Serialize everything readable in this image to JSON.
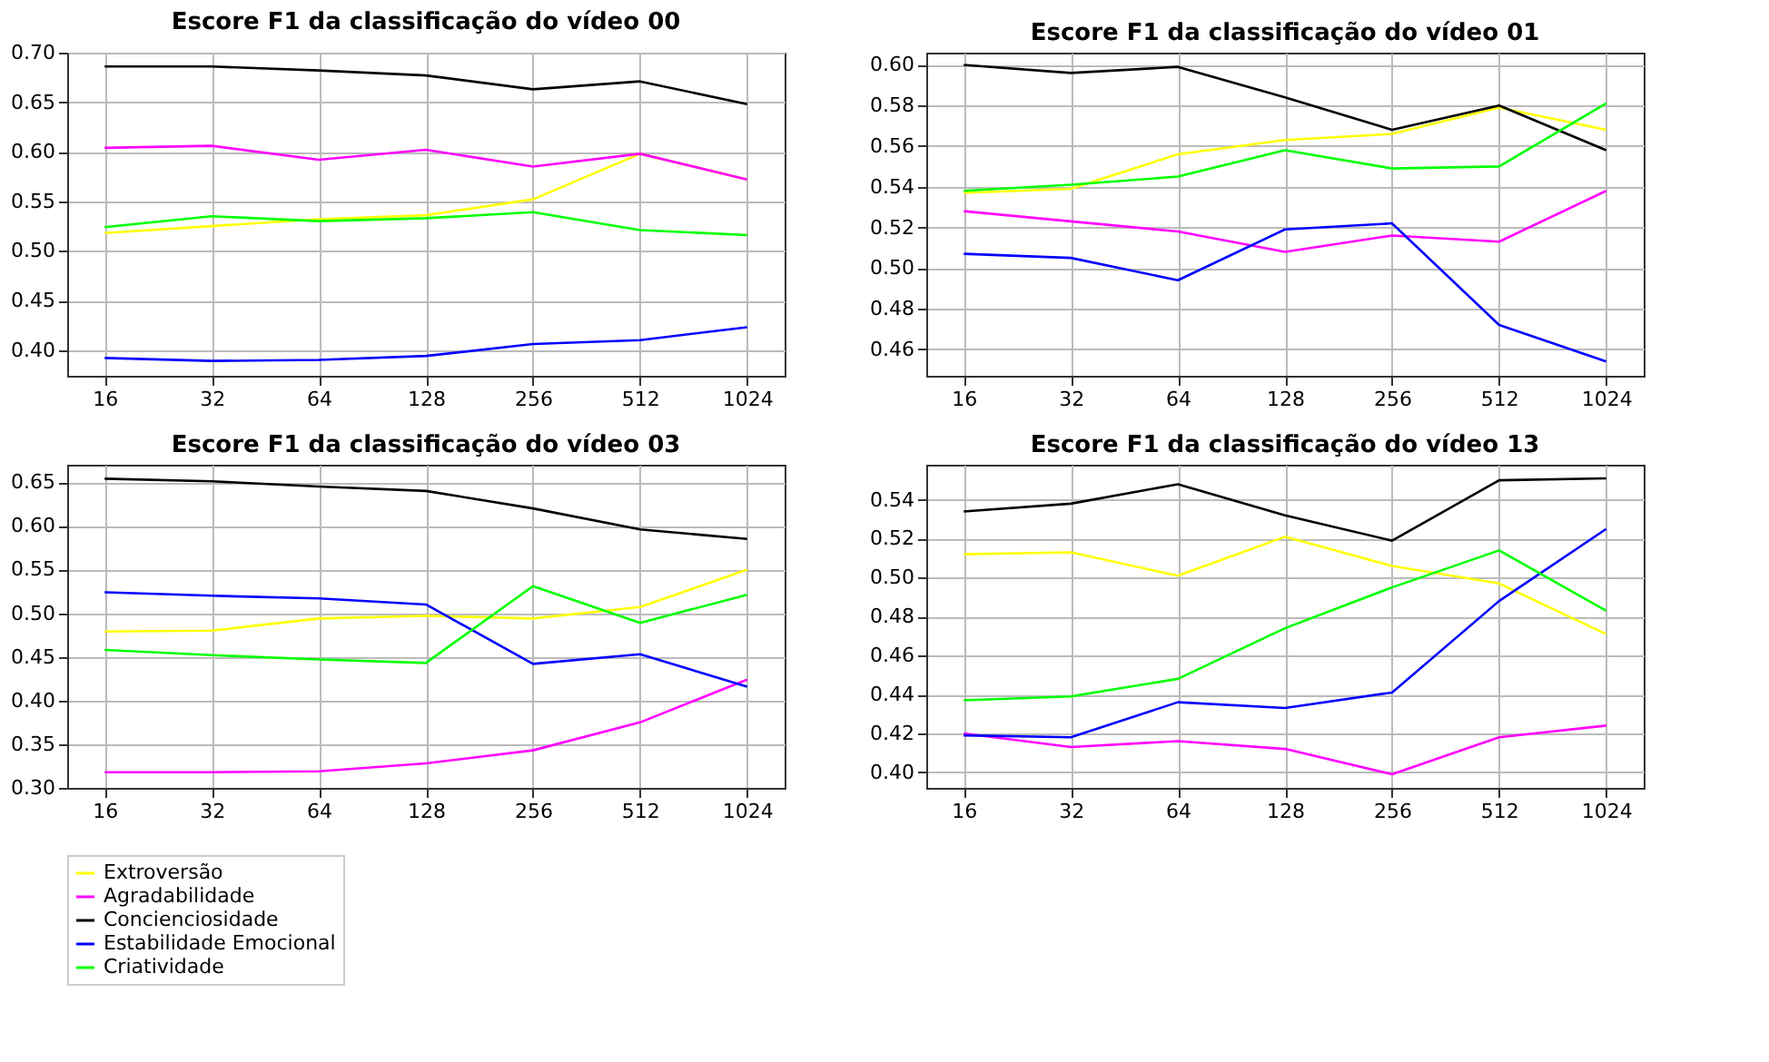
{
  "chart_data": [
    {
      "type": "line",
      "title": "Escore F1 da classificação do vídeo 00",
      "categories": [
        "16",
        "32",
        "64",
        "128",
        "256",
        "512",
        "1024"
      ],
      "ylim": [
        0.374,
        0.7
      ],
      "yticks": [
        {
          "value": 0.4,
          "label": "0.40"
        },
        {
          "value": 0.45,
          "label": "0.45"
        },
        {
          "value": 0.5,
          "label": "0.50"
        },
        {
          "value": 0.55,
          "label": "0.55"
        },
        {
          "value": 0.6,
          "label": "0.60"
        },
        {
          "value": 0.65,
          "label": "0.65"
        },
        {
          "value": 0.7,
          "label": "0.70"
        }
      ],
      "grid": true,
      "legend": "bottom",
      "series": [
        {
          "name": "Extroversão",
          "color": "#ffff00",
          "values": [
            0.518,
            0.525,
            0.532,
            0.536,
            0.552,
            0.598,
            0.572
          ]
        },
        {
          "name": "Agradabilidade",
          "color": "#ff00ff",
          "values": [
            0.604,
            0.606,
            0.592,
            0.602,
            0.585,
            0.598,
            0.572
          ]
        },
        {
          "name": "Concienciosidade",
          "color": "#000000",
          "values": [
            0.686,
            0.686,
            0.682,
            0.677,
            0.663,
            0.671,
            0.648
          ]
        },
        {
          "name": "Estabilidade Emocional",
          "color": "#0000ff",
          "values": [
            0.392,
            0.389,
            0.39,
            0.394,
            0.406,
            0.41,
            0.423
          ]
        },
        {
          "name": "Criatividade",
          "color": "#00ff00",
          "values": [
            0.524,
            0.535,
            0.53,
            0.533,
            0.539,
            0.521,
            0.516
          ]
        }
      ]
    },
    {
      "type": "line",
      "title": "Escore F1 da classificação do vídeo 01",
      "categories": [
        "16",
        "32",
        "64",
        "128",
        "256",
        "512",
        "1024"
      ],
      "ylim": [
        0.447,
        0.606
      ],
      "yticks": [
        {
          "value": 0.46,
          "label": "0.46"
        },
        {
          "value": 0.48,
          "label": "0.48"
        },
        {
          "value": 0.5,
          "label": "0.50"
        },
        {
          "value": 0.52,
          "label": "0.52"
        },
        {
          "value": 0.54,
          "label": "0.54"
        },
        {
          "value": 0.56,
          "label": "0.56"
        },
        {
          "value": 0.58,
          "label": "0.58"
        },
        {
          "value": 0.6,
          "label": "0.60"
        }
      ],
      "grid": true,
      "legend": "bottom",
      "series": [
        {
          "name": "Extroversão",
          "color": "#ffff00",
          "values": [
            0.537,
            0.539,
            0.556,
            0.563,
            0.566,
            0.579,
            0.568
          ]
        },
        {
          "name": "Agradabilidade",
          "color": "#ff00ff",
          "values": [
            0.528,
            0.523,
            0.518,
            0.508,
            0.516,
            0.513,
            0.538
          ]
        },
        {
          "name": "Concienciosidade",
          "color": "#000000",
          "values": [
            0.6,
            0.596,
            0.599,
            0.584,
            0.568,
            0.58,
            0.558
          ]
        },
        {
          "name": "Estabilidade Emocional",
          "color": "#0000ff",
          "values": [
            0.507,
            0.505,
            0.494,
            0.519,
            0.522,
            0.472,
            0.454
          ]
        },
        {
          "name": "Criatividade",
          "color": "#00ff00",
          "values": [
            0.538,
            0.541,
            0.545,
            0.558,
            0.549,
            0.55,
            0.581
          ]
        }
      ]
    },
    {
      "type": "line",
      "title": "Escore F1 da classificação do vídeo 03",
      "categories": [
        "16",
        "32",
        "64",
        "128",
        "256",
        "512",
        "1024"
      ],
      "ylim": [
        0.3,
        0.67
      ],
      "yticks": [
        {
          "value": 0.3,
          "label": "0.30"
        },
        {
          "value": 0.35,
          "label": "0.35"
        },
        {
          "value": 0.4,
          "label": "0.40"
        },
        {
          "value": 0.45,
          "label": "0.45"
        },
        {
          "value": 0.5,
          "label": "0.50"
        },
        {
          "value": 0.55,
          "label": "0.55"
        },
        {
          "value": 0.6,
          "label": "0.60"
        },
        {
          "value": 0.65,
          "label": "0.65"
        }
      ],
      "grid": true,
      "legend": "bottom",
      "series": [
        {
          "name": "Extroversão",
          "color": "#ffff00",
          "values": [
            0.479,
            0.48,
            0.494,
            0.497,
            0.494,
            0.507,
            0.55
          ]
        },
        {
          "name": "Agradabilidade",
          "color": "#ff00ff",
          "values": [
            0.318,
            0.318,
            0.319,
            0.328,
            0.343,
            0.375,
            0.424
          ]
        },
        {
          "name": "Concienciosidade",
          "color": "#000000",
          "values": [
            0.654,
            0.651,
            0.645,
            0.64,
            0.62,
            0.596,
            0.585
          ]
        },
        {
          "name": "Estabilidade Emocional",
          "color": "#0000ff",
          "values": [
            0.524,
            0.52,
            0.517,
            0.51,
            0.442,
            0.453,
            0.416
          ]
        },
        {
          "name": "Criatividade",
          "color": "#00ff00",
          "values": [
            0.458,
            0.452,
            0.447,
            0.443,
            0.531,
            0.489,
            0.521
          ]
        }
      ]
    },
    {
      "type": "line",
      "title": "Escore F1 da classificação do vídeo 13",
      "categories": [
        "16",
        "32",
        "64",
        "128",
        "256",
        "512",
        "1024"
      ],
      "ylim": [
        0.392,
        0.558
      ],
      "yticks": [
        {
          "value": 0.4,
          "label": "0.40"
        },
        {
          "value": 0.42,
          "label": "0.42"
        },
        {
          "value": 0.44,
          "label": "0.44"
        },
        {
          "value": 0.46,
          "label": "0.46"
        },
        {
          "value": 0.48,
          "label": "0.48"
        },
        {
          "value": 0.5,
          "label": "0.50"
        },
        {
          "value": 0.52,
          "label": "0.52"
        },
        {
          "value": 0.54,
          "label": "0.54"
        }
      ],
      "grid": true,
      "legend": "bottom",
      "series": [
        {
          "name": "Extroversão",
          "color": "#ffff00",
          "values": [
            0.512,
            0.513,
            0.501,
            0.521,
            0.506,
            0.497,
            0.471
          ]
        },
        {
          "name": "Agradabilidade",
          "color": "#ff00ff",
          "values": [
            0.42,
            0.413,
            0.416,
            0.412,
            0.399,
            0.418,
            0.424
          ]
        },
        {
          "name": "Concienciosidade",
          "color": "#000000",
          "values": [
            0.534,
            0.538,
            0.548,
            0.532,
            0.519,
            0.55,
            0.551
          ]
        },
        {
          "name": "Estabilidade Emocional",
          "color": "#0000ff",
          "values": [
            0.419,
            0.418,
            0.436,
            0.433,
            0.441,
            0.488,
            0.525
          ]
        },
        {
          "name": "Criatividade",
          "color": "#00ff00",
          "values": [
            0.437,
            0.439,
            0.448,
            0.474,
            0.495,
            0.514,
            0.483
          ]
        }
      ]
    }
  ]
}
